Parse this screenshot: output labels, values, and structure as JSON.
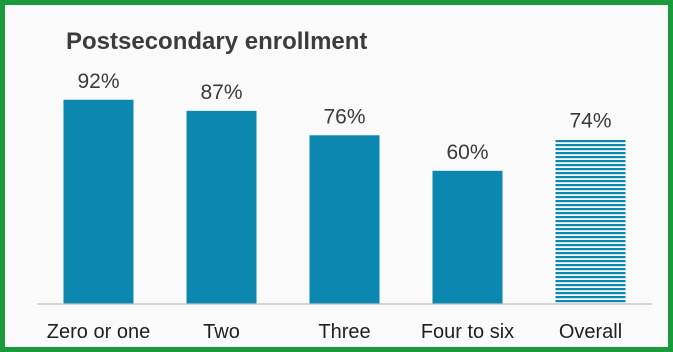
{
  "chart_data": {
    "type": "bar",
    "title": "Postsecondary enrollment",
    "xlabel": "",
    "ylabel": "",
    "ylim": [
      0,
      100
    ],
    "grid": false,
    "categories": [
      "Zero or one",
      "Two",
      "Three",
      "Four to six",
      "Overall"
    ],
    "values": [
      92,
      87,
      76,
      60,
      74
    ],
    "data_labels": [
      "92%",
      "87%",
      "76%",
      "60%",
      "74%"
    ],
    "colors": {
      "bar": "#0b87b0",
      "overall_pattern": "#0b87b0",
      "frame": "#1a9a3c",
      "axis": "#bfbfbf"
    },
    "patterned_categories": [
      "Overall"
    ]
  }
}
